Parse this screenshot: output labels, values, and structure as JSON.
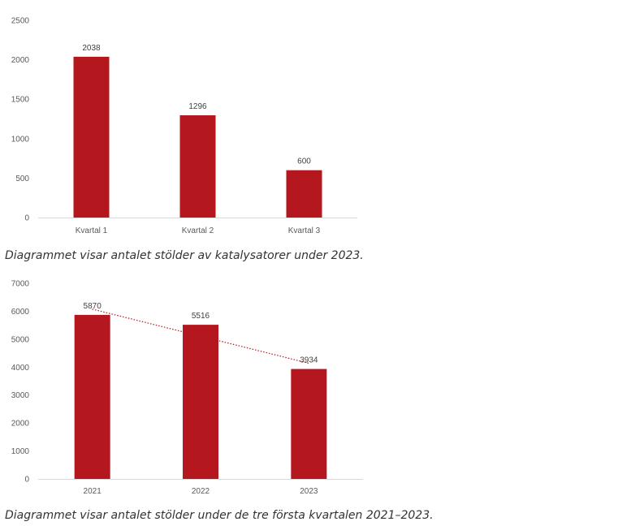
{
  "charts": [
    {
      "caption": "Diagrammet visar antalet stölder av katalysatorer under 2023."
    },
    {
      "caption": "Diagrammet visar antalet stölder under de tre första kvartalen 2021–2023."
    }
  ],
  "chart_data": [
    {
      "type": "bar",
      "categories": [
        "Kvartal 1",
        "Kvartal 2",
        "Kvartal 3"
      ],
      "values": [
        2038,
        1296,
        600
      ],
      "ylim": [
        0,
        2500
      ],
      "yticks": [
        0,
        500,
        1000,
        1500,
        2000,
        2500
      ],
      "data_labels": true,
      "grid": false,
      "bar_color": "#b5171e"
    },
    {
      "type": "bar",
      "categories": [
        "2021",
        "2022",
        "2023"
      ],
      "values": [
        5870,
        5516,
        3934
      ],
      "ylim": [
        0,
        7000
      ],
      "yticks": [
        0,
        1000,
        2000,
        3000,
        4000,
        5000,
        6000,
        7000
      ],
      "data_labels": true,
      "grid": false,
      "trendline": "linear",
      "bar_color": "#b5171e",
      "trendline_color": "#b5171e"
    }
  ]
}
